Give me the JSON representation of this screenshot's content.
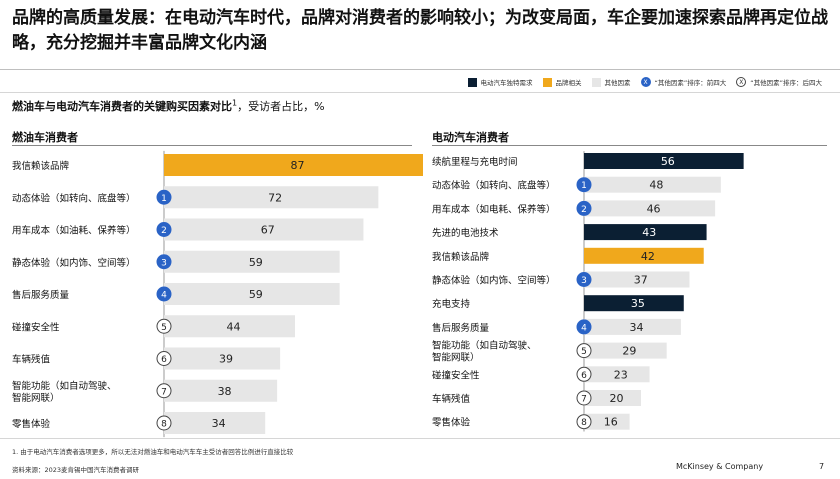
{
  "headline": "品牌的高质量发展：在电动汽车时代，品牌对消费者的影响较小；为改变局面，车企要加速探索品牌再定位战略，充分挖掘并丰富品牌文化内涵",
  "legend": {
    "items": [
      {
        "label": "电动汽车独特需求",
        "color": "#0b1f33"
      },
      {
        "label": "品牌相关",
        "color": "#f0a81c"
      },
      {
        "label": "其他因素",
        "color": "#e6e6e6"
      }
    ],
    "rank_top": {
      "symbol": "X",
      "label": "“其他因素”排序：前四大"
    },
    "rank_rest": {
      "symbol": "X",
      "label": "“其他因素”排序：后四大"
    }
  },
  "subtitle": {
    "bold": "燃油车与电动汽车消费者的关键购买因素对比",
    "sup": "1",
    "rest": "，受访者占比，%"
  },
  "chart_data": [
    {
      "type": "bar",
      "orientation": "horizontal",
      "title": "燃油车消费者",
      "unit": "%",
      "categories": [
        "我信赖该品牌",
        "动态体验（如转向、底盘等）",
        "用车成本（如油耗、保养等）",
        "静态体验（如内饰、空间等）",
        "售后服务质量",
        "碰撞安全性",
        "车辆残值",
        "智能功能（如自动驾驶、\n智能网联）",
        "零售体验"
      ],
      "values": [
        87,
        72,
        67,
        59,
        59,
        44,
        39,
        38,
        34
      ],
      "groups": [
        "brand",
        "other",
        "other",
        "other",
        "other",
        "other",
        "other",
        "other",
        "other"
      ],
      "ranks": [
        null,
        1,
        2,
        3,
        4,
        5,
        6,
        7,
        8
      ],
      "xlim": [
        0,
        87
      ]
    },
    {
      "type": "bar",
      "orientation": "horizontal",
      "title": "电动汽车消费者",
      "unit": "%",
      "categories": [
        "续航里程与充电时间",
        "动态体验（如转向、底盘等）",
        "用车成本（如电耗、保养等）",
        "先进的电池技术",
        "我信赖该品牌",
        "静态体验（如内饰、空间等）",
        "充电支持",
        "售后服务质量",
        "智能功能（如自动驾驶、\n智能网联）",
        "碰撞安全性",
        "车辆残值",
        "零售体验"
      ],
      "values": [
        56,
        48,
        46,
        43,
        42,
        37,
        35,
        34,
        29,
        23,
        20,
        16
      ],
      "groups": [
        "ev",
        "other",
        "other",
        "ev",
        "brand",
        "other",
        "ev",
        "other",
        "other",
        "other",
        "other",
        "other"
      ],
      "ranks": [
        null,
        1,
        2,
        null,
        null,
        3,
        null,
        4,
        5,
        6,
        7,
        8
      ],
      "xlim": [
        0,
        87
      ]
    }
  ],
  "colors": {
    "ev": "#0b1f33",
    "brand": "#f0a81c",
    "other": "#e6e6e6",
    "rank_filled": "#2a63c6",
    "label_dark": "#222222",
    "label_light": "#ffffff"
  },
  "footnote": "1.  由于电动汽车消费者选项更多，所以无法对燃油车和电动汽车车主受访者回答比例进行直接比较",
  "source": "资料来源：2023麦肯锡中国汽车消费者调研",
  "brand_name": "McKinsey & Company",
  "page_number": "7"
}
